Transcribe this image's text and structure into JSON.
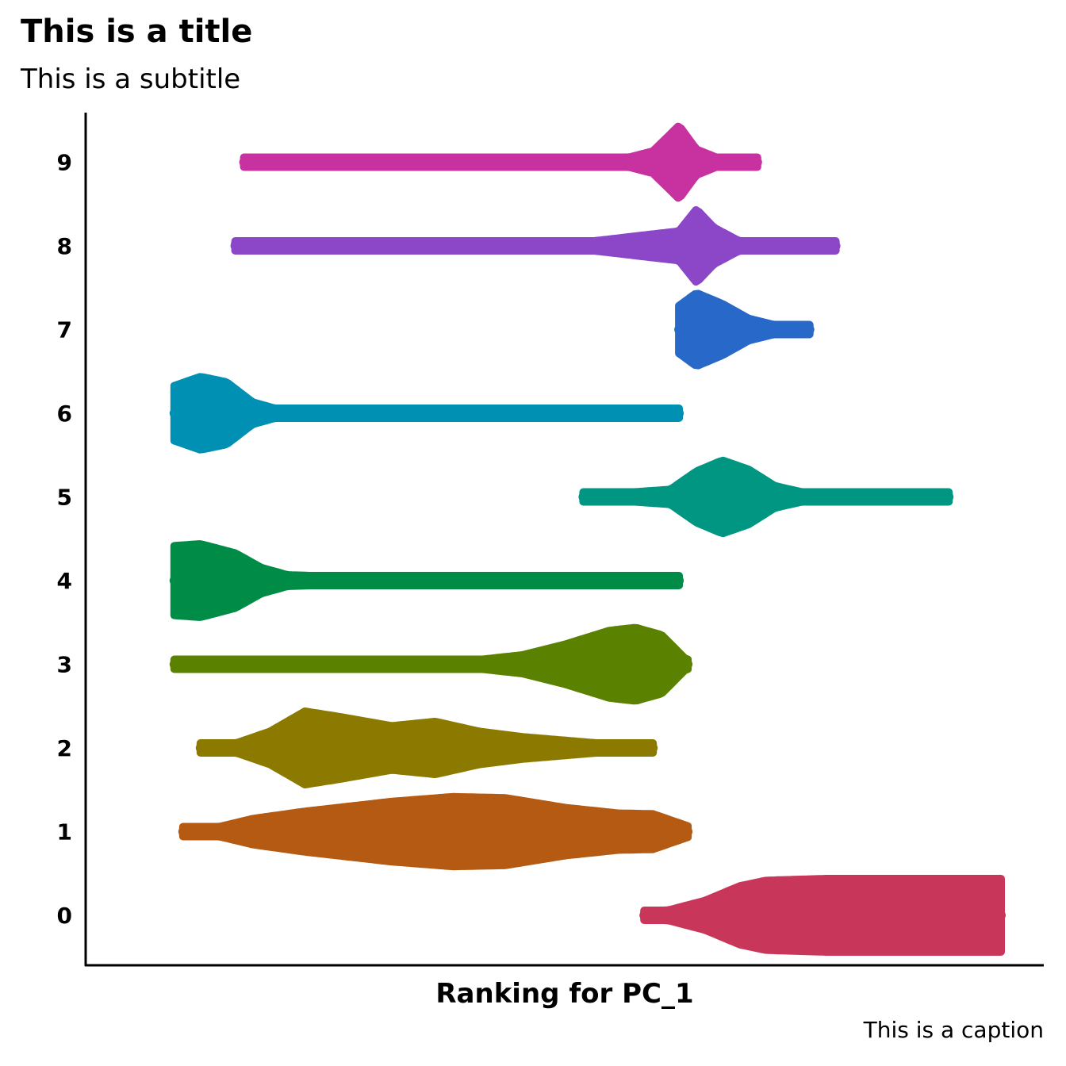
{
  "chart_data": {
    "type": "beeswarm",
    "title": "This is a title",
    "subtitle": "This is a subtitle",
    "caption": "This is a caption",
    "xlabel": "Ranking for PC_1",
    "ylabel": "",
    "categories": [
      "0",
      "1",
      "2",
      "3",
      "4",
      "5",
      "6",
      "7",
      "8",
      "9"
    ],
    "x_ticks_shown": false,
    "grid": false,
    "legend": "none",
    "series": [
      {
        "category": "0",
        "color": "#C8375A",
        "range": [
          0.59,
          1.0
        ],
        "density": [
          [
            0.59,
            0.04
          ],
          [
            0.62,
            0.15
          ],
          [
            0.66,
            0.4
          ],
          [
            0.7,
            0.8
          ],
          [
            0.73,
            0.95
          ],
          [
            0.8,
            1.0
          ],
          [
            0.9,
            1.0
          ],
          [
            1.0,
            1.0
          ]
        ]
      },
      {
        "category": "1",
        "color": "#B45A12",
        "range": [
          0.06,
          0.64
        ],
        "density": [
          [
            0.06,
            0.03
          ],
          [
            0.1,
            0.12
          ],
          [
            0.14,
            0.35
          ],
          [
            0.2,
            0.55
          ],
          [
            0.3,
            0.82
          ],
          [
            0.37,
            0.95
          ],
          [
            0.43,
            0.92
          ],
          [
            0.5,
            0.65
          ],
          [
            0.56,
            0.5
          ],
          [
            0.6,
            0.48
          ],
          [
            0.64,
            0.15
          ]
        ]
      },
      {
        "category": "2",
        "color": "#8C7A00",
        "range": [
          0.08,
          0.6
        ],
        "density": [
          [
            0.08,
            0.05
          ],
          [
            0.12,
            0.12
          ],
          [
            0.16,
            0.45
          ],
          [
            0.2,
            1.0
          ],
          [
            0.24,
            0.85
          ],
          [
            0.3,
            0.6
          ],
          [
            0.35,
            0.72
          ],
          [
            0.4,
            0.45
          ],
          [
            0.45,
            0.3
          ],
          [
            0.5,
            0.2
          ],
          [
            0.55,
            0.1
          ],
          [
            0.6,
            0.05
          ]
        ]
      },
      {
        "category": "3",
        "color": "#5A8200",
        "range": [
          0.05,
          0.64
        ],
        "density": [
          [
            0.05,
            0.04
          ],
          [
            0.3,
            0.06
          ],
          [
            0.4,
            0.12
          ],
          [
            0.45,
            0.25
          ],
          [
            0.5,
            0.55
          ],
          [
            0.55,
            0.92
          ],
          [
            0.58,
            1.0
          ],
          [
            0.61,
            0.8
          ],
          [
            0.64,
            0.08
          ]
        ]
      },
      {
        "category": "4",
        "color": "#008C46",
        "range": [
          0.05,
          0.63
        ],
        "density": [
          [
            0.05,
            0.95
          ],
          [
            0.08,
            1.0
          ],
          [
            0.12,
            0.75
          ],
          [
            0.15,
            0.35
          ],
          [
            0.18,
            0.15
          ],
          [
            0.25,
            0.1
          ],
          [
            0.4,
            0.06
          ],
          [
            0.52,
            0.05
          ],
          [
            0.63,
            0.04
          ]
        ]
      },
      {
        "category": "5",
        "color": "#009682",
        "range": [
          0.52,
          0.94
        ],
        "density": [
          [
            0.52,
            0.03
          ],
          [
            0.62,
            0.2
          ],
          [
            0.65,
            0.7
          ],
          [
            0.68,
            1.0
          ],
          [
            0.71,
            0.75
          ],
          [
            0.74,
            0.3
          ],
          [
            0.78,
            0.08
          ],
          [
            0.84,
            0.04
          ],
          [
            0.94,
            0.03
          ]
        ]
      },
      {
        "category": "6",
        "color": "#0090B4",
        "range": [
          0.05,
          0.63
        ],
        "density": [
          [
            0.05,
            0.75
          ],
          [
            0.08,
            1.0
          ],
          [
            0.11,
            0.85
          ],
          [
            0.14,
            0.3
          ],
          [
            0.17,
            0.1
          ],
          [
            0.25,
            0.05
          ],
          [
            0.63,
            0.03
          ]
        ]
      },
      {
        "category": "7",
        "color": "#2868C8",
        "range": [
          0.63,
          0.78
        ],
        "density": [
          [
            0.63,
            0.65
          ],
          [
            0.65,
            1.0
          ],
          [
            0.68,
            0.7
          ],
          [
            0.71,
            0.3
          ],
          [
            0.74,
            0.12
          ],
          [
            0.78,
            0.04
          ]
        ]
      },
      {
        "category": "8",
        "color": "#8C46C8",
        "range": [
          0.12,
          0.81
        ],
        "density": [
          [
            0.12,
            0.03
          ],
          [
            0.5,
            0.04
          ],
          [
            0.63,
            0.4
          ],
          [
            0.65,
            1.0
          ],
          [
            0.67,
            0.5
          ],
          [
            0.7,
            0.12
          ],
          [
            0.75,
            0.05
          ],
          [
            0.81,
            0.03
          ]
        ]
      },
      {
        "category": "9",
        "color": "#C832A0",
        "range": [
          0.13,
          0.72
        ],
        "density": [
          [
            0.13,
            0.03
          ],
          [
            0.56,
            0.05
          ],
          [
            0.6,
            0.3
          ],
          [
            0.63,
            1.0
          ],
          [
            0.65,
            0.35
          ],
          [
            0.68,
            0.06
          ],
          [
            0.72,
            0.03
          ]
        ]
      }
    ]
  }
}
